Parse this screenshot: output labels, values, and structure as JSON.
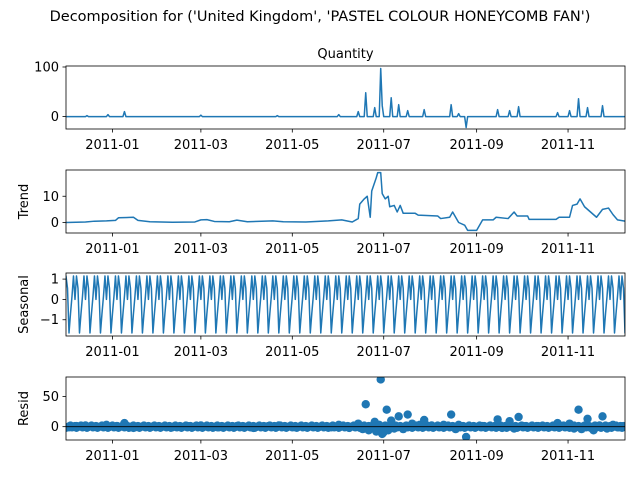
{
  "figure": {
    "title": "Decomposition for ('United Kingdom', 'PASTEL COLOUR HONEYCOMB FAN')"
  },
  "colors": {
    "series": "#1f77b4",
    "axis": "#000000",
    "background": "#ffffff"
  },
  "chart_data": [
    {
      "type": "line",
      "title": "Quantity",
      "xlabel": "",
      "ylabel": "",
      "x_range": [
        "2011-12-01",
        "2011-12-08"
      ],
      "x_range_note_removed": true,
      "xlim": [
        "2010-12-01",
        "2011-12-09"
      ],
      "ylim": [
        -25,
        102
      ],
      "x_ticks": [
        "2011-01",
        "2011-03",
        "2011-05",
        "2011-07",
        "2011-09",
        "2011-11"
      ],
      "y_ticks": [
        0,
        100
      ],
      "grid": false,
      "series": [
        {
          "points": [
            [
              "2010-12-01",
              0
            ],
            [
              "2010-12-14",
              0
            ],
            [
              "2010-12-15",
              2
            ],
            [
              "2010-12-16",
              0
            ],
            [
              "2010-12-28",
              0
            ],
            [
              "2010-12-29",
              4
            ],
            [
              "2010-12-30",
              0
            ],
            [
              "2011-01-08",
              0
            ],
            [
              "2011-01-09",
              10
            ],
            [
              "2011-01-10",
              0
            ],
            [
              "2011-02-28",
              0
            ],
            [
              "2011-03-01",
              3
            ],
            [
              "2011-03-02",
              0
            ],
            [
              "2011-04-20",
              0
            ],
            [
              "2011-04-21",
              2
            ],
            [
              "2011-04-22",
              0
            ],
            [
              "2011-05-31",
              0
            ],
            [
              "2011-06-01",
              4
            ],
            [
              "2011-06-02",
              0
            ],
            [
              "2011-06-13",
              0
            ],
            [
              "2011-06-14",
              10
            ],
            [
              "2011-06-15",
              0
            ],
            [
              "2011-06-18",
              0
            ],
            [
              "2011-06-19",
              48
            ],
            [
              "2011-06-20",
              0
            ],
            [
              "2011-06-24",
              0
            ],
            [
              "2011-06-25",
              18
            ],
            [
              "2011-06-26",
              0
            ],
            [
              "2011-06-28",
              0
            ],
            [
              "2011-06-29",
              97
            ],
            [
              "2011-06-30",
              22
            ],
            [
              "2011-07-01",
              0
            ],
            [
              "2011-07-05",
              0
            ],
            [
              "2011-07-06",
              38
            ],
            [
              "2011-07-07",
              0
            ],
            [
              "2011-07-10",
              0
            ],
            [
              "2011-07-11",
              24
            ],
            [
              "2011-07-12",
              0
            ],
            [
              "2011-07-16",
              0
            ],
            [
              "2011-07-17",
              12
            ],
            [
              "2011-07-18",
              0
            ],
            [
              "2011-07-27",
              0
            ],
            [
              "2011-07-28",
              14
            ],
            [
              "2011-07-29",
              0
            ],
            [
              "2011-08-14",
              0
            ],
            [
              "2011-08-15",
              24
            ],
            [
              "2011-08-16",
              0
            ],
            [
              "2011-08-19",
              0
            ],
            [
              "2011-08-20",
              6
            ],
            [
              "2011-08-21",
              0
            ],
            [
              "2011-08-24",
              0
            ],
            [
              "2011-08-25",
              -22
            ],
            [
              "2011-08-26",
              0
            ],
            [
              "2011-09-14",
              0
            ],
            [
              "2011-09-15",
              14
            ],
            [
              "2011-09-16",
              0
            ],
            [
              "2011-09-22",
              0
            ],
            [
              "2011-09-23",
              12
            ],
            [
              "2011-09-24",
              0
            ],
            [
              "2011-09-28",
              0
            ],
            [
              "2011-09-29",
              20
            ],
            [
              "2011-09-30",
              0
            ],
            [
              "2011-10-24",
              0
            ],
            [
              "2011-10-25",
              8
            ],
            [
              "2011-10-26",
              0
            ],
            [
              "2011-11-01",
              0
            ],
            [
              "2011-11-02",
              12
            ],
            [
              "2011-11-03",
              0
            ],
            [
              "2011-11-07",
              0
            ],
            [
              "2011-11-08",
              36
            ],
            [
              "2011-11-09",
              0
            ],
            [
              "2011-11-13",
              0
            ],
            [
              "2011-11-14",
              18
            ],
            [
              "2011-11-15",
              0
            ],
            [
              "2011-11-23",
              0
            ],
            [
              "2011-11-24",
              22
            ],
            [
              "2011-11-25",
              0
            ],
            [
              "2011-12-09",
              0
            ]
          ]
        }
      ]
    },
    {
      "type": "line",
      "title": "",
      "xlabel": "",
      "ylabel": "Trend",
      "xlim": [
        "2010-12-01",
        "2011-12-09"
      ],
      "ylim": [
        -4,
        20
      ],
      "x_ticks": [
        "2011-01",
        "2011-03",
        "2011-05",
        "2011-07",
        "2011-09",
        "2011-11"
      ],
      "y_ticks": [
        0,
        10
      ],
      "grid": false,
      "series": [
        {
          "points": [
            [
              "2010-12-01",
              0
            ],
            [
              "2010-12-14",
              0.2
            ],
            [
              "2010-12-20",
              0.5
            ],
            [
              "2010-12-28",
              0.6
            ],
            [
              "2011-01-03",
              0.8
            ],
            [
              "2011-01-05",
              1.8
            ],
            [
              "2011-01-15",
              2.0
            ],
            [
              "2011-01-18",
              0.8
            ],
            [
              "2011-01-26",
              0.3
            ],
            [
              "2011-02-10",
              0.1
            ],
            [
              "2011-02-25",
              0.2
            ],
            [
              "2011-03-01",
              1.0
            ],
            [
              "2011-03-05",
              1.1
            ],
            [
              "2011-03-10",
              0.4
            ],
            [
              "2011-03-20",
              0.3
            ],
            [
              "2011-03-25",
              0.9
            ],
            [
              "2011-04-01",
              0.3
            ],
            [
              "2011-04-18",
              0.6
            ],
            [
              "2011-04-25",
              0.3
            ],
            [
              "2011-05-10",
              0.2
            ],
            [
              "2011-05-25",
              0.6
            ],
            [
              "2011-06-03",
              1.0
            ],
            [
              "2011-06-10",
              0.2
            ],
            [
              "2011-06-14",
              1.5
            ],
            [
              "2011-06-15",
              7
            ],
            [
              "2011-06-18",
              9
            ],
            [
              "2011-06-20",
              10
            ],
            [
              "2011-06-22",
              2
            ],
            [
              "2011-06-23",
              12
            ],
            [
              "2011-06-26",
              17
            ],
            [
              "2011-06-27",
              19
            ],
            [
              "2011-06-29",
              19
            ],
            [
              "2011-06-30",
              11
            ],
            [
              "2011-07-02",
              9
            ],
            [
              "2011-07-04",
              10
            ],
            [
              "2011-07-05",
              6
            ],
            [
              "2011-07-08",
              6.5
            ],
            [
              "2011-07-10",
              4
            ],
            [
              "2011-07-12",
              6.5
            ],
            [
              "2011-07-14",
              3.5
            ],
            [
              "2011-07-22",
              3.5
            ],
            [
              "2011-07-24",
              2.8
            ],
            [
              "2011-08-06",
              2.5
            ],
            [
              "2011-08-08",
              1.5
            ],
            [
              "2011-08-14",
              2
            ],
            [
              "2011-08-16",
              4
            ],
            [
              "2011-08-18",
              2
            ],
            [
              "2011-08-20",
              0
            ],
            [
              "2011-08-24",
              -1
            ],
            [
              "2011-08-26",
              -3
            ],
            [
              "2011-09-01",
              -3
            ],
            [
              "2011-09-05",
              1
            ],
            [
              "2011-09-12",
              1
            ],
            [
              "2011-09-14",
              2
            ],
            [
              "2011-09-22",
              1.5
            ],
            [
              "2011-09-26",
              4
            ],
            [
              "2011-09-28",
              2.5
            ],
            [
              "2011-10-05",
              2.5
            ],
            [
              "2011-10-06",
              1.2
            ],
            [
              "2011-10-24",
              1.2
            ],
            [
              "2011-10-26",
              2
            ],
            [
              "2011-11-02",
              2
            ],
            [
              "2011-11-04",
              6.5
            ],
            [
              "2011-11-07",
              7
            ],
            [
              "2011-11-09",
              9
            ],
            [
              "2011-11-12",
              6
            ],
            [
              "2011-11-16",
              4
            ],
            [
              "2011-11-20",
              2
            ],
            [
              "2011-11-24",
              5
            ],
            [
              "2011-11-28",
              5.5
            ],
            [
              "2011-12-01",
              3
            ],
            [
              "2011-12-04",
              1
            ],
            [
              "2011-12-09",
              0.5
            ]
          ]
        }
      ]
    },
    {
      "type": "line",
      "title": "",
      "xlabel": "",
      "ylabel": "Seasonal",
      "xlim": [
        "2010-12-01",
        "2011-12-09"
      ],
      "ylim": [
        -1.8,
        1.3
      ],
      "x_ticks": [
        "2011-01",
        "2011-03",
        "2011-05",
        "2011-07",
        "2011-09",
        "2011-11"
      ],
      "y_ticks": [
        -1,
        0,
        1
      ],
      "grid": false,
      "series": [
        {
          "period_days": 7,
          "weekly_pattern": [
            1.15,
            0.55,
            -1.65,
            -0.7,
            0.15,
            1.15,
            0.0
          ]
        }
      ]
    },
    {
      "type": "scatter",
      "title": "",
      "xlabel": "",
      "ylabel": "Resid",
      "xlim": [
        "2010-12-01",
        "2011-12-09"
      ],
      "ylim": [
        -22,
        82
      ],
      "x_ticks": [
        "2011-01",
        "2011-03",
        "2011-05",
        "2011-07",
        "2011-09",
        "2011-11"
      ],
      "y_ticks": [
        0,
        50
      ],
      "grid": false,
      "baseline": 0,
      "series": [
        {
          "points": [
            [
              "2010-12-03",
              -1
            ],
            [
              "2010-12-08",
              1
            ],
            [
              "2010-12-14",
              2
            ],
            [
              "2010-12-20",
              0
            ],
            [
              "2010-12-28",
              3
            ],
            [
              "2011-01-04",
              1
            ],
            [
              "2011-01-09",
              6
            ],
            [
              "2011-01-15",
              -2
            ],
            [
              "2011-01-22",
              1
            ],
            [
              "2011-02-01",
              0
            ],
            [
              "2011-02-10",
              -1
            ],
            [
              "2011-02-20",
              1
            ],
            [
              "2011-03-01",
              2
            ],
            [
              "2011-03-12",
              -1
            ],
            [
              "2011-03-25",
              1
            ],
            [
              "2011-04-05",
              -2
            ],
            [
              "2011-04-15",
              1
            ],
            [
              "2011-04-22",
              2
            ],
            [
              "2011-05-03",
              -1
            ],
            [
              "2011-05-15",
              0
            ],
            [
              "2011-05-27",
              -1
            ],
            [
              "2011-06-01",
              3
            ],
            [
              "2011-06-08",
              -2
            ],
            [
              "2011-06-14",
              5
            ],
            [
              "2011-06-17",
              -4
            ],
            [
              "2011-06-19",
              37
            ],
            [
              "2011-06-21",
              -6
            ],
            [
              "2011-06-24",
              2
            ],
            [
              "2011-06-25",
              8
            ],
            [
              "2011-06-26",
              -8
            ],
            [
              "2011-06-28",
              3
            ],
            [
              "2011-06-29",
              78
            ],
            [
              "2011-06-30",
              -12
            ],
            [
              "2011-07-01",
              -9
            ],
            [
              "2011-07-03",
              28
            ],
            [
              "2011-07-04",
              -6
            ],
            [
              "2011-07-06",
              10
            ],
            [
              "2011-07-08",
              -3
            ],
            [
              "2011-07-11",
              17
            ],
            [
              "2011-07-14",
              -4
            ],
            [
              "2011-07-17",
              20
            ],
            [
              "2011-07-20",
              5
            ],
            [
              "2011-07-25",
              3
            ],
            [
              "2011-07-28",
              11
            ],
            [
              "2011-08-02",
              2
            ],
            [
              "2011-08-10",
              3
            ],
            [
              "2011-08-15",
              20
            ],
            [
              "2011-08-18",
              -4
            ],
            [
              "2011-08-20",
              3
            ],
            [
              "2011-08-25",
              -17
            ],
            [
              "2011-08-28",
              0
            ],
            [
              "2011-09-05",
              1
            ],
            [
              "2011-09-15",
              12
            ],
            [
              "2011-09-18",
              -2
            ],
            [
              "2011-09-23",
              9
            ],
            [
              "2011-09-26",
              -3
            ],
            [
              "2011-09-29",
              16
            ],
            [
              "2011-10-02",
              1
            ],
            [
              "2011-10-12",
              1
            ],
            [
              "2011-10-22",
              0
            ],
            [
              "2011-10-25",
              6
            ],
            [
              "2011-11-02",
              5
            ],
            [
              "2011-11-05",
              -3
            ],
            [
              "2011-11-08",
              28
            ],
            [
              "2011-11-10",
              -4
            ],
            [
              "2011-11-14",
              13
            ],
            [
              "2011-11-18",
              -6
            ],
            [
              "2011-11-22",
              2
            ],
            [
              "2011-11-24",
              17
            ],
            [
              "2011-11-27",
              -3
            ],
            [
              "2011-12-01",
              3
            ],
            [
              "2011-12-05",
              -1
            ],
            [
              "2011-12-08",
              1
            ]
          ]
        }
      ]
    }
  ]
}
